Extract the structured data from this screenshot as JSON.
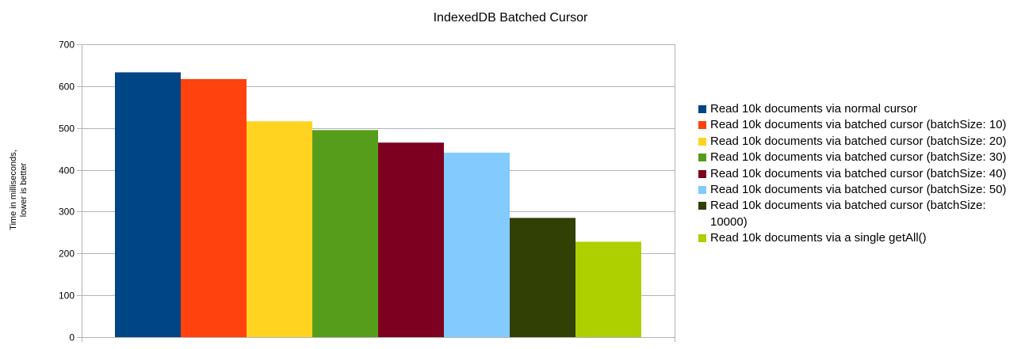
{
  "chart_data": {
    "type": "bar",
    "title": "IndexedDB Batched Cursor",
    "ylabel": [
      "Time in milliseconds,",
      "lower is better"
    ],
    "xlabel": "",
    "ylim": [
      0,
      700
    ],
    "yticks": [
      0,
      100,
      200,
      300,
      400,
      500,
      600,
      700
    ],
    "grid": true,
    "legend_position": "right",
    "series": [
      {
        "name": "Read 10k documents via normal cursor",
        "value": 633,
        "color": "#004586"
      },
      {
        "name": "Read 10k documents via batched cursor (batchSize: 10)",
        "value": 617,
        "color": "#ff420e"
      },
      {
        "name": "Read 10k documents via batched cursor (batchSize: 20)",
        "value": 516,
        "color": "#ffd320"
      },
      {
        "name": "Read 10k documents via batched cursor (batchSize: 30)",
        "value": 495,
        "color": "#579d1c"
      },
      {
        "name": "Read 10k documents via batched cursor (batchSize: 40)",
        "value": 465,
        "color": "#7e0021"
      },
      {
        "name": "Read 10k documents via batched cursor (batchSize: 50)",
        "value": 441,
        "color": "#83caff"
      },
      {
        "name": "Read 10k documents via batched cursor (batchSize: 10000)",
        "value": 285,
        "color": "#314004"
      },
      {
        "name": "Read 10k documents via a single getAll()",
        "value": 228,
        "color": "#aecf00"
      }
    ]
  }
}
